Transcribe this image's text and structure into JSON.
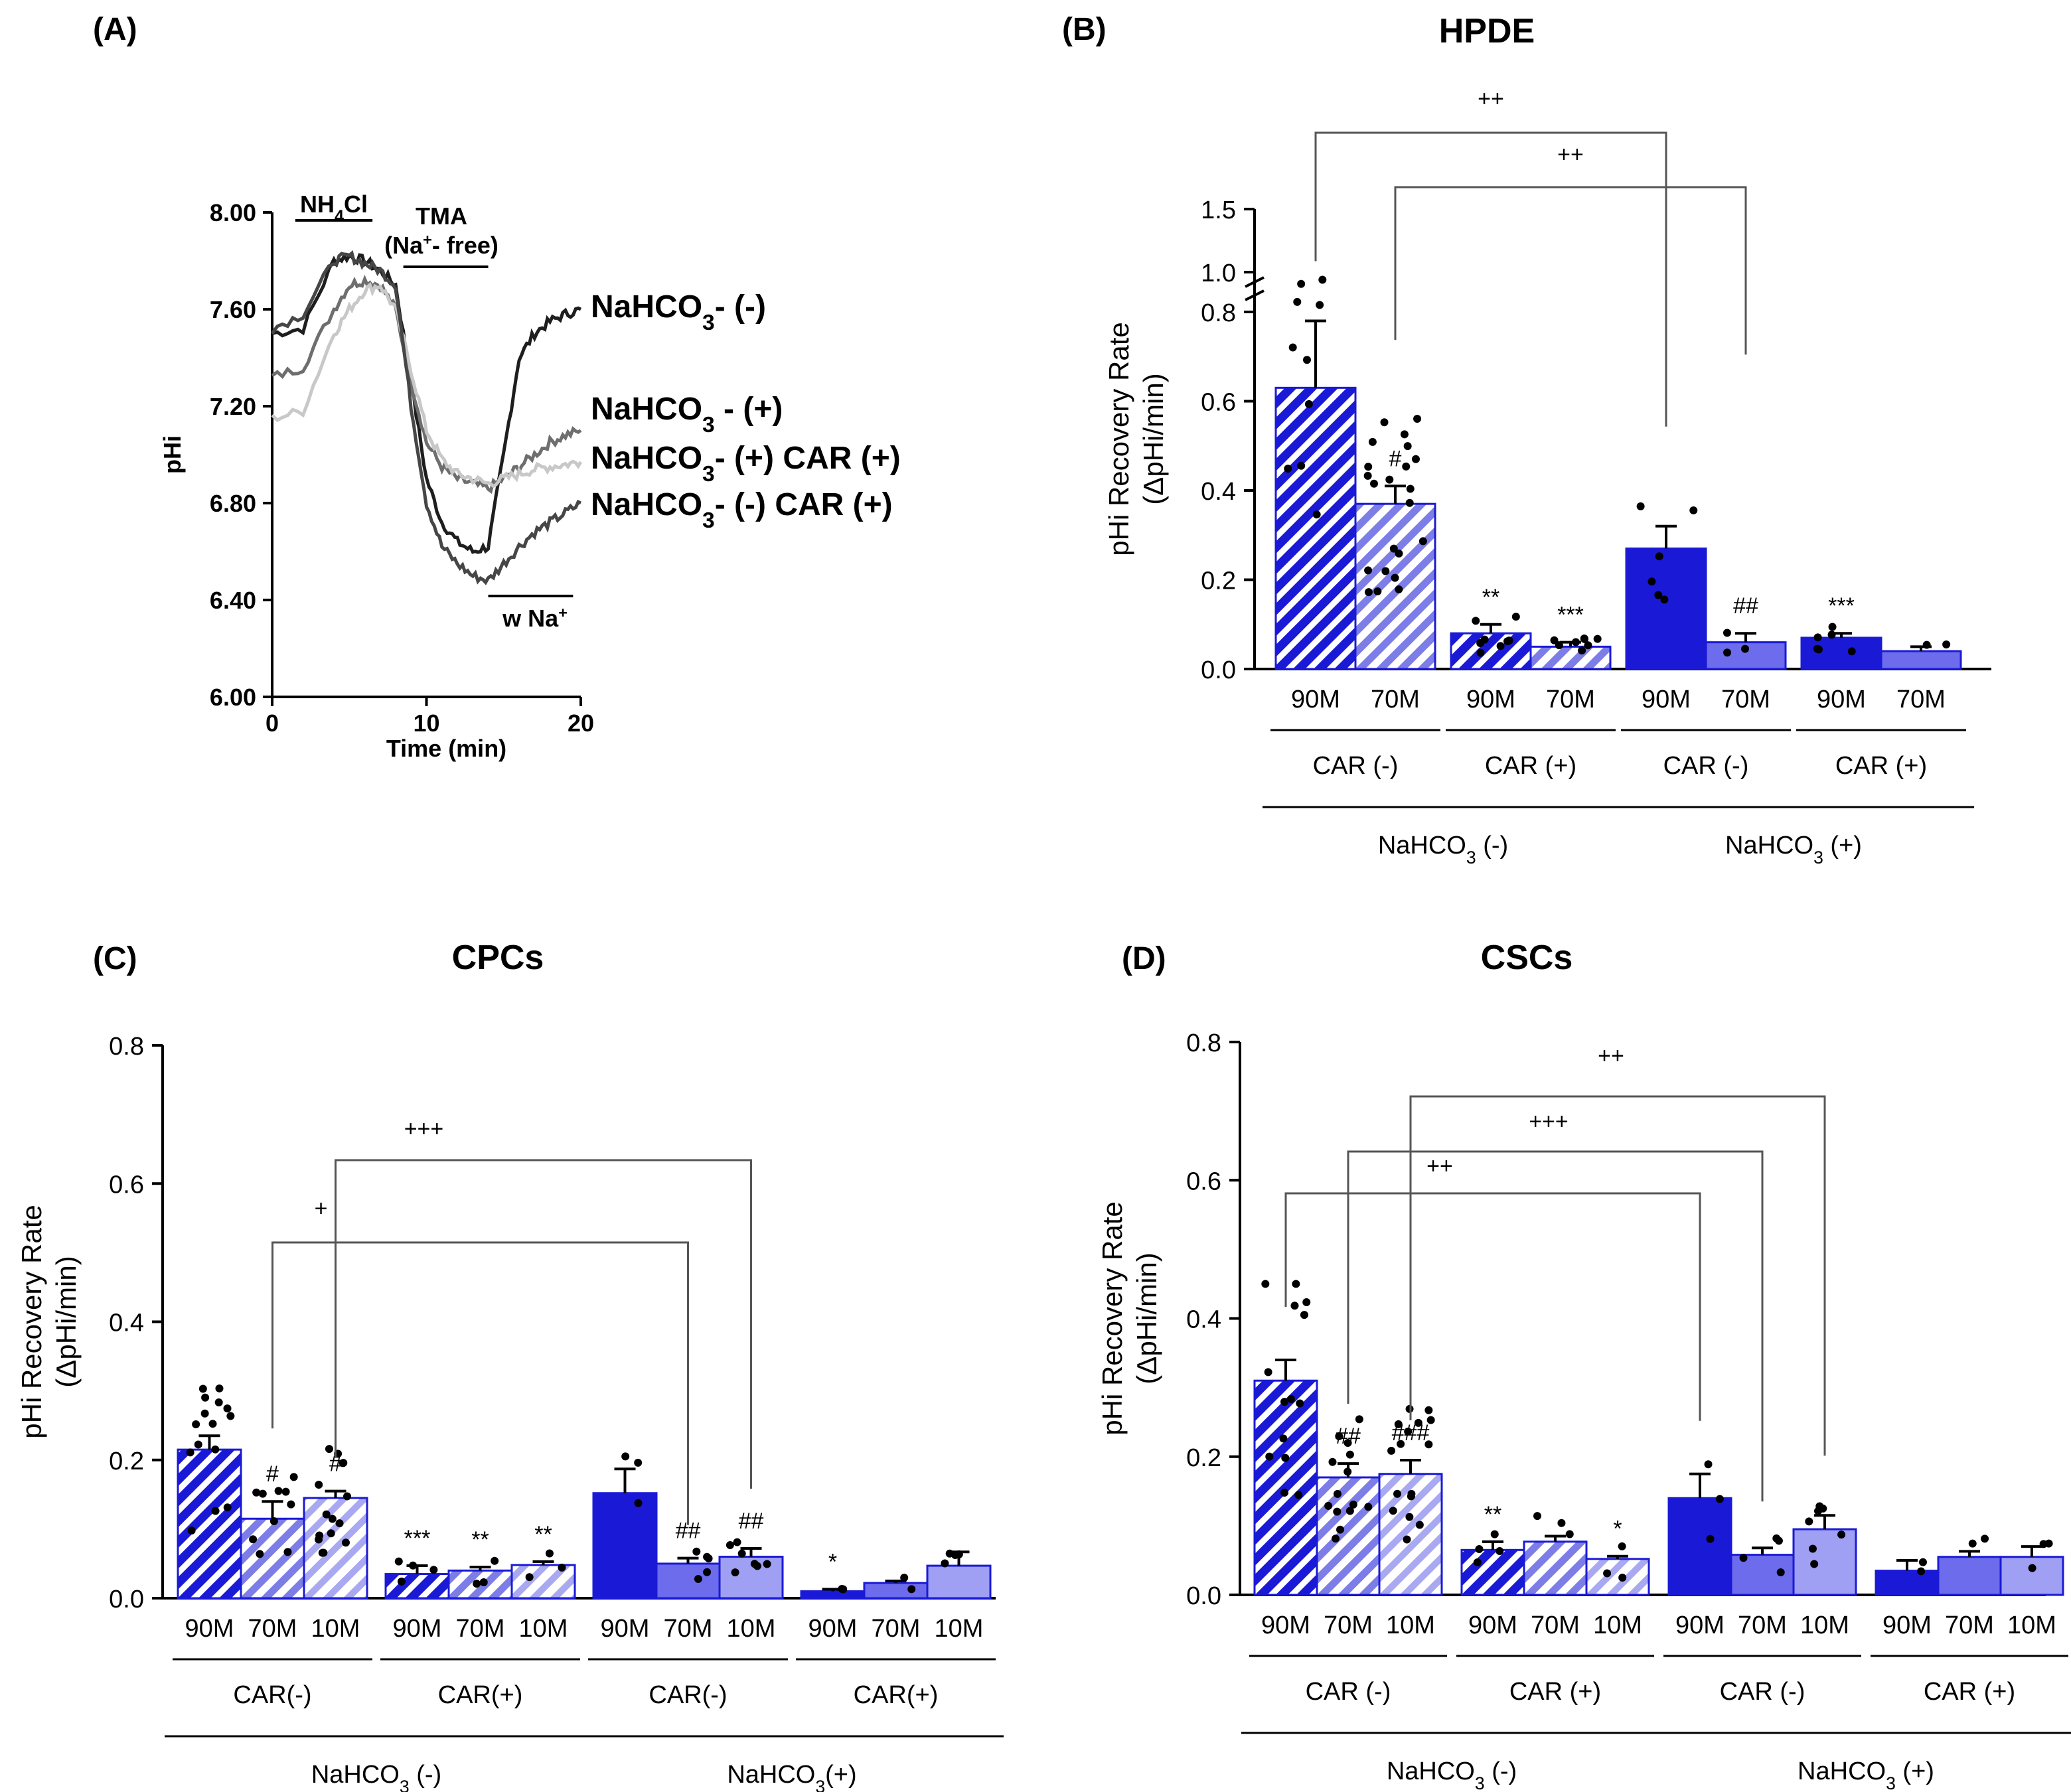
{
  "chart_data": [
    {
      "id": "A",
      "type": "line",
      "panel_label": "(A)",
      "title": "",
      "xlabel": "Time (min)",
      "ylabel": "pHi",
      "xlim": [
        0,
        20
      ],
      "ylim": [
        6.0,
        8.0
      ],
      "x_ticks": [
        "0",
        "10",
        "20"
      ],
      "y_ticks": [
        "6.00",
        "6.40",
        "6.80",
        "7.20",
        "7.60",
        "8.00"
      ],
      "annotations": [
        {
          "text": "NH4Cl",
          "x_start": 1.5,
          "x_end": 6.5
        },
        {
          "text": "TMA",
          "x_start": 8.5,
          "x_end": 14
        },
        {
          "text": "(Na+- free)"
        },
        {
          "text": "w Na+",
          "x_start": 14,
          "x_end": 19.5
        }
      ],
      "series": [
        {
          "name": "NaHCO3- (-)",
          "color": "#1e1e1e",
          "x": [
            0,
            2,
            4,
            5,
            6,
            7,
            8,
            9,
            10,
            11,
            12,
            13,
            14,
            15,
            16,
            17,
            18,
            19,
            20
          ],
          "y": [
            7.5,
            7.52,
            7.8,
            7.82,
            7.8,
            7.76,
            7.7,
            7.3,
            6.9,
            6.72,
            6.64,
            6.6,
            6.62,
            7.0,
            7.4,
            7.5,
            7.55,
            7.58,
            7.6
          ]
        },
        {
          "name": "NaHCO3 - (+)",
          "color": "#6e6e6e",
          "x": [
            0,
            2,
            4,
            5,
            6,
            7,
            8,
            9,
            10,
            11,
            12,
            13,
            14,
            15,
            16,
            17,
            18,
            19,
            20
          ],
          "y": [
            7.32,
            7.36,
            7.6,
            7.7,
            7.72,
            7.7,
            7.6,
            7.3,
            7.05,
            6.95,
            6.9,
            6.88,
            6.86,
            6.9,
            6.95,
            7.0,
            7.05,
            7.08,
            7.1
          ]
        },
        {
          "name": "NaHCO3- (+) CAR (+)",
          "color": "#c8c8c8",
          "x": [
            0,
            2,
            4,
            5,
            6,
            7,
            8,
            9,
            10,
            11,
            12,
            13,
            14,
            15,
            16,
            17,
            18,
            19,
            20
          ],
          "y": [
            7.15,
            7.18,
            7.5,
            7.6,
            7.68,
            7.7,
            7.6,
            7.35,
            7.1,
            6.98,
            6.92,
            6.9,
            6.88,
            6.9,
            6.92,
            6.94,
            6.95,
            6.96,
            6.97
          ]
        },
        {
          "name": "NaHCO3- (-) CAR (+)",
          "color": "#464646",
          "x": [
            0,
            2,
            4,
            5,
            6,
            7,
            8,
            9,
            10,
            11,
            12,
            13,
            14,
            15,
            16,
            17,
            18,
            19,
            20
          ],
          "y": [
            7.52,
            7.58,
            7.8,
            7.82,
            7.79,
            7.76,
            7.7,
            7.2,
            6.8,
            6.62,
            6.55,
            6.5,
            6.48,
            6.55,
            6.62,
            6.68,
            6.72,
            6.76,
            6.8
          ]
        }
      ]
    },
    {
      "id": "B",
      "type": "bar",
      "panel_label": "(B)",
      "title": "HPDE",
      "ylabel": "pHi Recovery Rate",
      "ylabel2": "(ΔpHi/min)",
      "ylim": [
        0,
        1.5
      ],
      "y_ticks": [
        "0.0",
        "0.2",
        "0.4",
        "0.6",
        "0.8",
        "1.0",
        "1.5"
      ],
      "axis_break": "between 0.8 and 1.0",
      "categories": [
        "90M",
        "70M",
        "90M",
        "70M",
        "90M",
        "70M",
        "90M",
        "70M"
      ],
      "groups": [
        {
          "label": "CAR (-)",
          "parent": "NaHCO3 (-)"
        },
        {
          "label": "CAR (+)",
          "parent": "NaHCO3 (-)"
        },
        {
          "label": "CAR (-)",
          "parent": "NaHCO3 (+)"
        },
        {
          "label": "CAR (+)",
          "parent": "NaHCO3 (+)"
        }
      ],
      "parents": [
        "NaHCO3 (-)",
        "NaHCO3 (+)"
      ],
      "values": [
        0.63,
        0.37,
        0.08,
        0.05,
        0.27,
        0.06,
        0.07,
        0.04
      ],
      "errors": [
        0.15,
        0.04,
        0.02,
        0.01,
        0.05,
        0.02,
        0.01,
        0.01
      ],
      "significance": [
        "",
        "#",
        "**",
        "***",
        "",
        "##",
        "***",
        ""
      ],
      "brackets": [
        {
          "from_bar": 0,
          "to_bar": 4,
          "label": "++"
        },
        {
          "from_bar": 1,
          "to_bar": 5,
          "label": "++"
        }
      ],
      "colors": [
        "#1a1ad6",
        "#9a9af0",
        "#1a1ad6",
        "#9a9af0",
        "#1a1ad6",
        "#6c6cec",
        "#1a1ad6",
        "#6c6cec"
      ]
    },
    {
      "id": "C",
      "type": "bar",
      "panel_label": "(C)",
      "title": "CPCs",
      "ylabel": "pHi Recovery Rate",
      "ylabel2": "(ΔpHi/min)",
      "ylim": [
        0,
        0.8
      ],
      "y_ticks": [
        "0.0",
        "0.2",
        "0.4",
        "0.6",
        "0.8"
      ],
      "categories": [
        "90M",
        "70M",
        "10M",
        "90M",
        "70M",
        "10M",
        "90M",
        "70M",
        "10M",
        "90M",
        "70M",
        "10M"
      ],
      "groups": [
        {
          "label": "CAR(-)",
          "parent": "NaHCO3 (-)"
        },
        {
          "label": "CAR(+)",
          "parent": "NaHCO3 (-)"
        },
        {
          "label": "CAR(-)",
          "parent": "NaHCO3(+)"
        },
        {
          "label": "CAR(+)",
          "parent": "NaHCO3(+)"
        }
      ],
      "parents": [
        "NaHCO3 (-)",
        "NaHCO3(+)"
      ],
      "values": [
        0.215,
        0.115,
        0.145,
        0.035,
        0.04,
        0.048,
        0.152,
        0.05,
        0.06,
        0.01,
        0.022,
        0.047
      ],
      "errors": [
        0.02,
        0.025,
        0.01,
        0.012,
        0.005,
        0.005,
        0.035,
        0.008,
        0.012,
        0.003,
        0.003,
        0.02
      ],
      "significance": [
        "",
        "#",
        "#",
        "***",
        "**",
        "**",
        "",
        "##",
        "##",
        "*",
        "",
        ""
      ],
      "brackets": [
        {
          "from_bar": 1,
          "to_bar": 7,
          "label": "+"
        },
        {
          "from_bar": 2,
          "to_bar": 8,
          "label": "+++"
        }
      ]
    },
    {
      "id": "D",
      "type": "bar",
      "panel_label": "(D)",
      "title": "CSCs",
      "ylabel": "pHi Recovery   Rate",
      "ylabel2": "(ΔpHi/min)",
      "ylim": [
        0,
        0.8
      ],
      "y_ticks": [
        "0.0",
        "0.2",
        "0.4",
        "0.6",
        "0.8"
      ],
      "categories": [
        "90M",
        "70M",
        "10M",
        "90M",
        "70M",
        "10M",
        "90M",
        "70M",
        "10M",
        "90M",
        "70M",
        "10M"
      ],
      "groups": [
        {
          "label": "CAR (-)",
          "parent": "NaHCO3 (-)"
        },
        {
          "label": "CAR (+)",
          "parent": "NaHCO3 (-)"
        },
        {
          "label": "CAR (-)",
          "parent": "NaHCO3 (+)"
        },
        {
          "label": "CAR (+)",
          "parent": "NaHCO3 (+)"
        }
      ],
      "parents": [
        "NaHCO3 (-)",
        "NaHCO3 (+)"
      ],
      "values": [
        0.31,
        0.17,
        0.175,
        0.065,
        0.077,
        0.052,
        0.14,
        0.058,
        0.095,
        0.035,
        0.055,
        0.055
      ],
      "errors": [
        0.03,
        0.02,
        0.02,
        0.012,
        0.008,
        0.004,
        0.035,
        0.01,
        0.02,
        0.015,
        0.008,
        0.015
      ],
      "significance": [
        "",
        "##",
        "###",
        "**",
        "",
        "*",
        "",
        "",
        "",
        "",
        "",
        ""
      ],
      "brackets": [
        {
          "from_bar": 0,
          "to_bar": 6,
          "label": "++"
        },
        {
          "from_bar": 1,
          "to_bar": 7,
          "label": "+++"
        },
        {
          "from_bar": 2,
          "to_bar": 8,
          "label": "++"
        }
      ]
    }
  ]
}
